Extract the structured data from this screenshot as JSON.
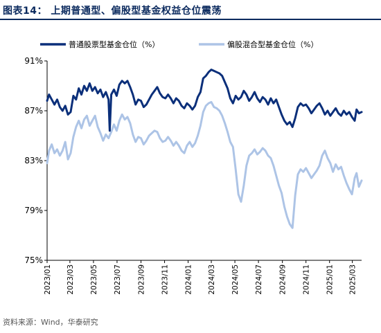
{
  "figure": {
    "title": "图表14： 上期普通型、偏股型基金权益仓位震荡",
    "source": "资料来源：Wind，华泰研究"
  },
  "colors": {
    "title": "#0b2a5e",
    "series_stock": "#0b2f7a",
    "series_hybrid": "#adc4e6",
    "axis": "#000000"
  },
  "chart_data": {
    "type": "line",
    "title": "",
    "xlabel": "",
    "ylabel": "",
    "y_unit": "%",
    "ylim": [
      75,
      91
    ],
    "y_ticks": [
      75,
      79,
      83,
      87,
      91
    ],
    "y_tick_labels": [
      "75%",
      "79%",
      "83%",
      "87%",
      "91%"
    ],
    "xlim": [
      "2023-01-01",
      "2025-03-25"
    ],
    "x_ticks": [
      "2023-01-01",
      "2023-03-01",
      "2023-05-01",
      "2023-07-01",
      "2023-09-01",
      "2023-11-01",
      "2024-01-01",
      "2024-03-01",
      "2024-05-01",
      "2024-07-01",
      "2024-09-01",
      "2024-11-01",
      "2025-01-01",
      "2025-03-01"
    ],
    "x_tick_labels": [
      "2023/01",
      "2023/03",
      "2023/05",
      "2023/07",
      "2023/09",
      "2023/11",
      "2024/01",
      "2024/03",
      "2024/05",
      "2024/07",
      "2024/09",
      "2024/11",
      "2025/01",
      "2025/03"
    ],
    "grid": false,
    "legend_position": "top",
    "series": [
      {
        "name": "普通股票型基金仓位（%）",
        "points": [
          [
            "2023-01-01",
            87.8
          ],
          [
            "2023-01-06",
            88.3
          ],
          [
            "2023-01-13",
            87.9
          ],
          [
            "2023-01-20",
            87.5
          ],
          [
            "2023-01-27",
            87.9
          ],
          [
            "2023-02-03",
            87.3
          ],
          [
            "2023-02-10",
            87.0
          ],
          [
            "2023-02-17",
            87.4
          ],
          [
            "2023-02-24",
            86.7
          ],
          [
            "2023-03-03",
            86.9
          ],
          [
            "2023-03-10",
            88.2
          ],
          [
            "2023-03-17",
            87.9
          ],
          [
            "2023-03-24",
            88.8
          ],
          [
            "2023-03-31",
            88.3
          ],
          [
            "2023-04-07",
            89.0
          ],
          [
            "2023-04-14",
            88.6
          ],
          [
            "2023-04-21",
            89.2
          ],
          [
            "2023-04-28",
            88.6
          ],
          [
            "2023-05-05",
            88.9
          ],
          [
            "2023-05-12",
            88.4
          ],
          [
            "2023-05-19",
            88.7
          ],
          [
            "2023-05-26",
            88.1
          ],
          [
            "2023-06-02",
            88.5
          ],
          [
            "2023-06-09",
            87.9
          ],
          [
            "2023-06-12",
            85.4
          ],
          [
            "2023-06-16",
            88.3
          ],
          [
            "2023-06-23",
            88.7
          ],
          [
            "2023-06-30",
            88.2
          ],
          [
            "2023-07-07",
            89.1
          ],
          [
            "2023-07-14",
            89.4
          ],
          [
            "2023-07-21",
            89.2
          ],
          [
            "2023-07-28",
            89.4
          ],
          [
            "2023-08-04",
            88.9
          ],
          [
            "2023-08-11",
            88.3
          ],
          [
            "2023-08-18",
            87.5
          ],
          [
            "2023-08-25",
            87.9
          ],
          [
            "2023-09-01",
            87.8
          ],
          [
            "2023-09-08",
            87.3
          ],
          [
            "2023-09-15",
            87.5
          ],
          [
            "2023-09-22",
            87.9
          ],
          [
            "2023-09-29",
            88.3
          ],
          [
            "2023-10-06",
            88.6
          ],
          [
            "2023-10-13",
            88.9
          ],
          [
            "2023-10-20",
            88.4
          ],
          [
            "2023-10-27",
            88.1
          ],
          [
            "2023-11-03",
            88.0
          ],
          [
            "2023-11-10",
            88.3
          ],
          [
            "2023-11-17",
            88.0
          ],
          [
            "2023-11-24",
            87.6
          ],
          [
            "2023-12-01",
            88.0
          ],
          [
            "2023-12-08",
            87.8
          ],
          [
            "2023-12-15",
            87.4
          ],
          [
            "2023-12-22",
            87.2
          ],
          [
            "2023-12-29",
            87.6
          ],
          [
            "2024-01-05",
            87.4
          ],
          [
            "2024-01-12",
            87.1
          ],
          [
            "2024-01-19",
            87.4
          ],
          [
            "2024-01-26",
            88.1
          ],
          [
            "2024-02-02",
            88.5
          ],
          [
            "2024-02-09",
            89.6
          ],
          [
            "2024-02-16",
            89.8
          ],
          [
            "2024-02-23",
            90.1
          ],
          [
            "2024-03-01",
            90.3
          ],
          [
            "2024-03-08",
            90.2
          ],
          [
            "2024-03-15",
            90.1
          ],
          [
            "2024-03-22",
            90.0
          ],
          [
            "2024-03-29",
            89.8
          ],
          [
            "2024-04-05",
            89.3
          ],
          [
            "2024-04-12",
            88.8
          ],
          [
            "2024-04-19",
            88.0
          ],
          [
            "2024-04-26",
            87.6
          ],
          [
            "2024-05-03",
            88.2
          ],
          [
            "2024-05-10",
            87.9
          ],
          [
            "2024-05-17",
            88.1
          ],
          [
            "2024-05-24",
            88.6
          ],
          [
            "2024-05-31",
            88.3
          ],
          [
            "2024-06-07",
            87.8
          ],
          [
            "2024-06-14",
            88.1
          ],
          [
            "2024-06-21",
            88.5
          ],
          [
            "2024-06-28",
            88.0
          ],
          [
            "2024-07-05",
            87.7
          ],
          [
            "2024-07-12",
            88.1
          ],
          [
            "2024-07-19",
            87.9
          ],
          [
            "2024-07-26",
            87.5
          ],
          [
            "2024-08-02",
            88.0
          ],
          [
            "2024-08-09",
            87.6
          ],
          [
            "2024-08-16",
            87.9
          ],
          [
            "2024-08-23",
            87.3
          ],
          [
            "2024-08-30",
            86.7
          ],
          [
            "2024-09-06",
            86.2
          ],
          [
            "2024-09-13",
            85.9
          ],
          [
            "2024-09-20",
            86.1
          ],
          [
            "2024-09-27",
            85.7
          ],
          [
            "2024-10-04",
            86.4
          ],
          [
            "2024-10-11",
            87.3
          ],
          [
            "2024-10-18",
            87.6
          ],
          [
            "2024-10-25",
            87.4
          ],
          [
            "2024-11-01",
            87.5
          ],
          [
            "2024-11-08",
            87.2
          ],
          [
            "2024-11-15",
            86.8
          ],
          [
            "2024-11-22",
            87.1
          ],
          [
            "2024-11-29",
            87.4
          ],
          [
            "2024-12-06",
            87.6
          ],
          [
            "2024-12-13",
            87.2
          ],
          [
            "2024-12-20",
            86.7
          ],
          [
            "2024-12-27",
            87.0
          ],
          [
            "2025-01-03",
            86.6
          ],
          [
            "2025-01-10",
            86.9
          ],
          [
            "2025-01-17",
            87.2
          ],
          [
            "2025-01-24",
            86.8
          ],
          [
            "2025-01-31",
            86.6
          ],
          [
            "2025-02-07",
            87.0
          ],
          [
            "2025-02-14",
            86.7
          ],
          [
            "2025-02-21",
            86.9
          ],
          [
            "2025-02-28",
            86.5
          ],
          [
            "2025-03-07",
            86.2
          ],
          [
            "2025-03-12",
            87.1
          ],
          [
            "2025-03-18",
            86.8
          ],
          [
            "2025-03-25",
            86.9
          ]
        ]
      },
      {
        "name": "偏股混合型基金仓位（%）",
        "points": [
          [
            "2023-01-01",
            82.8
          ],
          [
            "2023-01-06",
            83.8
          ],
          [
            "2023-01-13",
            84.3
          ],
          [
            "2023-01-20",
            83.6
          ],
          [
            "2023-01-27",
            83.9
          ],
          [
            "2023-02-03",
            83.4
          ],
          [
            "2023-02-10",
            83.8
          ],
          [
            "2023-02-17",
            84.5
          ],
          [
            "2023-02-24",
            83.1
          ],
          [
            "2023-03-03",
            83.6
          ],
          [
            "2023-03-10",
            84.9
          ],
          [
            "2023-03-17",
            85.7
          ],
          [
            "2023-03-24",
            86.2
          ],
          [
            "2023-03-31",
            85.6
          ],
          [
            "2023-04-07",
            86.3
          ],
          [
            "2023-04-14",
            86.6
          ],
          [
            "2023-04-21",
            85.8
          ],
          [
            "2023-04-28",
            86.2
          ],
          [
            "2023-05-05",
            86.6
          ],
          [
            "2023-05-12",
            85.7
          ],
          [
            "2023-05-19",
            85.2
          ],
          [
            "2023-05-26",
            84.6
          ],
          [
            "2023-06-02",
            85.1
          ],
          [
            "2023-06-09",
            84.8
          ],
          [
            "2023-06-16",
            85.3
          ],
          [
            "2023-06-23",
            85.9
          ],
          [
            "2023-06-30",
            85.4
          ],
          [
            "2023-07-07",
            86.2
          ],
          [
            "2023-07-14",
            86.7
          ],
          [
            "2023-07-21",
            86.3
          ],
          [
            "2023-07-28",
            86.5
          ],
          [
            "2023-08-04",
            86.0
          ],
          [
            "2023-08-11",
            85.1
          ],
          [
            "2023-08-18",
            84.5
          ],
          [
            "2023-08-25",
            84.9
          ],
          [
            "2023-09-01",
            84.8
          ],
          [
            "2023-09-08",
            84.3
          ],
          [
            "2023-09-15",
            84.6
          ],
          [
            "2023-09-22",
            85.0
          ],
          [
            "2023-09-29",
            85.2
          ],
          [
            "2023-10-06",
            85.4
          ],
          [
            "2023-10-13",
            85.3
          ],
          [
            "2023-10-20",
            84.8
          ],
          [
            "2023-10-27",
            84.5
          ],
          [
            "2023-11-03",
            84.6
          ],
          [
            "2023-11-10",
            84.9
          ],
          [
            "2023-11-17",
            84.6
          ],
          [
            "2023-11-24",
            84.2
          ],
          [
            "2023-12-01",
            84.5
          ],
          [
            "2023-12-08",
            84.2
          ],
          [
            "2023-12-15",
            83.8
          ],
          [
            "2023-12-22",
            83.6
          ],
          [
            "2023-12-29",
            84.2
          ],
          [
            "2024-01-05",
            84.5
          ],
          [
            "2024-01-12",
            84.1
          ],
          [
            "2024-01-19",
            84.4
          ],
          [
            "2024-01-26",
            85.0
          ],
          [
            "2024-02-02",
            85.8
          ],
          [
            "2024-02-09",
            86.9
          ],
          [
            "2024-02-16",
            87.4
          ],
          [
            "2024-02-23",
            87.6
          ],
          [
            "2024-03-01",
            87.7
          ],
          [
            "2024-03-08",
            87.3
          ],
          [
            "2024-03-15",
            87.2
          ],
          [
            "2024-03-22",
            87.0
          ],
          [
            "2024-03-29",
            86.6
          ],
          [
            "2024-04-05",
            86.0
          ],
          [
            "2024-04-12",
            85.3
          ],
          [
            "2024-04-19",
            84.5
          ],
          [
            "2024-04-26",
            84.1
          ],
          [
            "2024-05-03",
            82.3
          ],
          [
            "2024-05-10",
            80.3
          ],
          [
            "2024-05-17",
            79.7
          ],
          [
            "2024-05-24",
            81.0
          ],
          [
            "2024-05-31",
            82.6
          ],
          [
            "2024-06-07",
            83.4
          ],
          [
            "2024-06-14",
            83.6
          ],
          [
            "2024-06-21",
            83.9
          ],
          [
            "2024-06-28",
            83.5
          ],
          [
            "2024-07-05",
            83.7
          ],
          [
            "2024-07-12",
            84.0
          ],
          [
            "2024-07-19",
            83.8
          ],
          [
            "2024-07-26",
            83.4
          ],
          [
            "2024-08-02",
            83.2
          ],
          [
            "2024-08-09",
            82.6
          ],
          [
            "2024-08-16",
            81.8
          ],
          [
            "2024-08-23",
            81.0
          ],
          [
            "2024-08-30",
            80.4
          ],
          [
            "2024-09-06",
            79.3
          ],
          [
            "2024-09-13",
            78.5
          ],
          [
            "2024-09-20",
            77.9
          ],
          [
            "2024-09-27",
            77.6
          ],
          [
            "2024-10-04",
            80.2
          ],
          [
            "2024-10-11",
            81.9
          ],
          [
            "2024-10-18",
            82.3
          ],
          [
            "2024-10-25",
            82.1
          ],
          [
            "2024-11-01",
            82.4
          ],
          [
            "2024-11-08",
            82.0
          ],
          [
            "2024-11-15",
            81.6
          ],
          [
            "2024-11-22",
            81.9
          ],
          [
            "2024-11-29",
            82.2
          ],
          [
            "2024-12-06",
            82.6
          ],
          [
            "2024-12-13",
            83.4
          ],
          [
            "2024-12-20",
            83.8
          ],
          [
            "2024-12-27",
            83.2
          ],
          [
            "2025-01-03",
            82.8
          ],
          [
            "2025-01-10",
            82.1
          ],
          [
            "2025-01-17",
            82.7
          ],
          [
            "2025-01-24",
            82.3
          ],
          [
            "2025-01-31",
            82.5
          ],
          [
            "2025-02-07",
            81.8
          ],
          [
            "2025-02-14",
            81.2
          ],
          [
            "2025-02-21",
            80.7
          ],
          [
            "2025-02-28",
            80.3
          ],
          [
            "2025-03-07",
            81.6
          ],
          [
            "2025-03-12",
            82.0
          ],
          [
            "2025-03-18",
            80.9
          ],
          [
            "2025-03-25",
            81.4
          ]
        ]
      }
    ]
  }
}
